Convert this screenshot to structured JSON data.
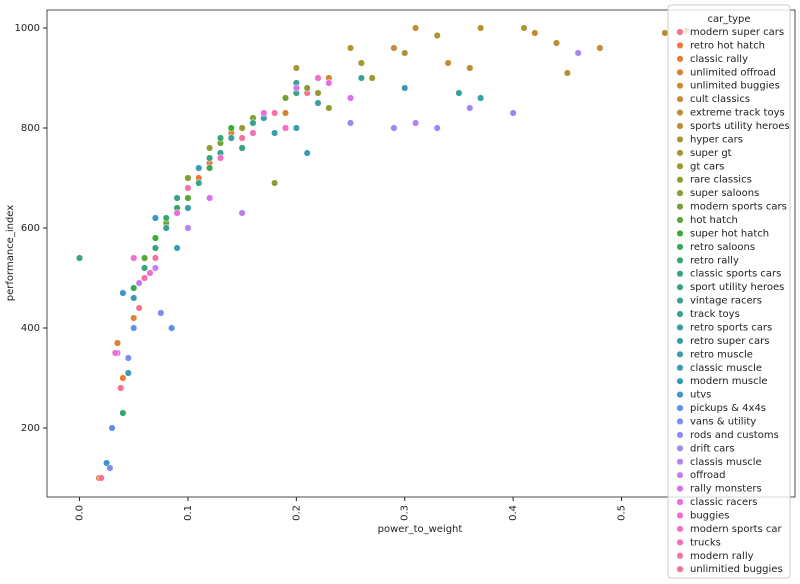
{
  "chart_data": {
    "type": "scatter",
    "xlabel": "power_to_weight",
    "ylabel": "performance_index",
    "xlim": [
      -0.03,
      0.66
    ],
    "ylim": [
      62,
      1036
    ],
    "xticks": [
      {
        "value": 0,
        "label": "0.0"
      },
      0.1,
      0.2,
      0.3,
      0.4,
      0.5
    ],
    "yticks": [
      200,
      400,
      600,
      800,
      1000
    ],
    "legend_title": "car_type",
    "legend": "upper right",
    "series": [
      {
        "name": "modern super cars",
        "color": "#f77189",
        "x": [
          0.17,
          0.21,
          0.23
        ],
        "values": [
          820,
          870,
          900
        ]
      },
      {
        "name": "retro hot hatch",
        "color": "#f5763f",
        "x": [
          0.06,
          0.09,
          0.12
        ],
        "values": [
          520,
          640,
          730
        ]
      },
      {
        "name": "classic rally",
        "color": "#ed7a32",
        "x": [
          0.04,
          0.07,
          0.11
        ],
        "values": [
          300,
          540,
          700
        ]
      },
      {
        "name": "unlimited offroad",
        "color": "#e08032",
        "x": [
          0.02,
          0.05,
          0.14
        ],
        "values": [
          100,
          420,
          790
        ]
      },
      {
        "name": "unlimited buggies",
        "color": "#d58532",
        "x": [
          0.018,
          0.035,
          0.19
        ],
        "values": [
          100,
          370,
          830
        ]
      },
      {
        "name": "cult classics",
        "color": "#cb8932",
        "x": [
          0.23,
          0.29,
          0.34
        ],
        "values": [
          900,
          960,
          930
        ]
      },
      {
        "name": "extreme track toys",
        "color": "#c18d32",
        "x": [
          0.31,
          0.37,
          0.42,
          0.48
        ],
        "values": [
          1000,
          1000,
          990,
          960
        ]
      },
      {
        "name": "sports utility heroes",
        "color": "#b89032",
        "x": [
          0.36,
          0.44,
          0.54,
          0.56
        ],
        "values": [
          920,
          970,
          990,
          995
        ]
      },
      {
        "name": "hyper cars",
        "color": "#ae9432",
        "x": [
          0.25,
          0.33,
          0.41,
          0.45
        ],
        "values": [
          960,
          985,
          1000,
          910
        ]
      },
      {
        "name": "super gt",
        "color": "#a59632",
        "x": [
          0.2,
          0.26,
          0.3
        ],
        "values": [
          920,
          930,
          950
        ]
      },
      {
        "name": "gt cars",
        "color": "#9b9932",
        "x": [
          0.15,
          0.22,
          0.27
        ],
        "values": [
          800,
          870,
          900
        ]
      },
      {
        "name": "rare classics",
        "color": "#8f9c32",
        "x": [
          0.12,
          0.18,
          0.23
        ],
        "values": [
          760,
          690,
          840
        ]
      },
      {
        "name": "super saloons",
        "color": "#829f32",
        "x": [
          0.1,
          0.16,
          0.21
        ],
        "values": [
          700,
          820,
          880
        ]
      },
      {
        "name": "modern sports cars",
        "color": "#72a232",
        "x": [
          0.08,
          0.13,
          0.19
        ],
        "values": [
          610,
          770,
          860
        ]
      },
      {
        "name": "hot hatch",
        "color": "#5ca632",
        "x": [
          0.06,
          0.08,
          0.1
        ],
        "values": [
          540,
          600,
          660
        ]
      },
      {
        "name": "super hot hatch",
        "color": "#3ba935",
        "x": [
          0.07,
          0.11,
          0.14
        ],
        "values": [
          580,
          720,
          800
        ]
      },
      {
        "name": "retro saloons",
        "color": "#33a95a",
        "x": [
          0.05,
          0.09,
          0.12
        ],
        "values": [
          480,
          640,
          720
        ]
      },
      {
        "name": "retro rally",
        "color": "#34a76d",
        "x": [
          0.04,
          0.08,
          0.13
        ],
        "values": [
          230,
          620,
          780
        ]
      },
      {
        "name": "classic sports cars",
        "color": "#35a67a",
        "x": [
          0.07,
          0.1,
          0.15
        ],
        "values": [
          560,
          680,
          760
        ]
      },
      {
        "name": "sport utility heroes",
        "color": "#36a484",
        "x": [
          0.09,
          0.12,
          0.2
        ],
        "values": [
          660,
          740,
          870
        ]
      },
      {
        "name": "vintage racers",
        "color": "#36a38c",
        "x": [
          0,
          0.06,
          0.11,
          0.16
        ],
        "values": [
          540,
          520,
          690,
          810
        ]
      },
      {
        "name": "track toys",
        "color": "#37a294",
        "x": [
          0.14,
          0.2,
          0.26
        ],
        "values": [
          780,
          890,
          900
        ]
      },
      {
        "name": "retro sports cars",
        "color": "#38a09b",
        "x": [
          0.08,
          0.13,
          0.35
        ],
        "values": [
          600,
          750,
          870
        ]
      },
      {
        "name": "retro super cars",
        "color": "#389fa2",
        "x": [
          0.17,
          0.22,
          0.37
        ],
        "values": [
          820,
          850,
          860
        ]
      },
      {
        "name": "retro muscle",
        "color": "#399daa",
        "x": [
          0.05,
          0.1,
          0.18
        ],
        "values": [
          460,
          640,
          790
        ]
      },
      {
        "name": "classic muscle",
        "color": "#3a9bb2",
        "x": [
          0.045,
          0.09,
          0.2
        ],
        "values": [
          310,
          560,
          800
        ]
      },
      {
        "name": "modern muscle",
        "color": "#3b98bd",
        "x": [
          0.11,
          0.21,
          0.3
        ],
        "values": [
          720,
          750,
          880
        ]
      },
      {
        "name": "utvs",
        "color": "#3d95ca",
        "x": [
          0.025,
          0.04,
          0.07
        ],
        "values": [
          130,
          470,
          620
        ]
      },
      {
        "name": "pickups & 4x4s",
        "color": "#5c8ff0",
        "x": [
          0.03,
          0.05,
          0.085
        ],
        "values": [
          200,
          400,
          400
        ]
      },
      {
        "name": "vans & utility",
        "color": "#7a8ef2",
        "x": [
          0.028,
          0.045,
          0.075
        ],
        "values": [
          120,
          340,
          430
        ]
      },
      {
        "name": "rods and customs",
        "color": "#918bf3",
        "x": [
          0.25,
          0.33,
          0.4
        ],
        "values": [
          810,
          800,
          830
        ]
      },
      {
        "name": "drift cars",
        "color": "#a486f4",
        "x": [
          0.29,
          0.36,
          0.46
        ],
        "values": [
          800,
          840,
          950
        ]
      },
      {
        "name": "classis muscle",
        "color": "#b681f4",
        "x": [
          0.1,
          0.15,
          0.31
        ],
        "values": [
          600,
          630,
          810
        ]
      },
      {
        "name": "offroad",
        "color": "#c77bf4",
        "x": [
          0.035,
          0.055,
          0.07
        ],
        "values": [
          350,
          490,
          520
        ]
      },
      {
        "name": "rally monsters",
        "color": "#d773f0",
        "x": [
          0.12,
          0.2,
          0.25
        ],
        "values": [
          660,
          880,
          860
        ]
      },
      {
        "name": "classic racers",
        "color": "#e56de3",
        "x": [
          0.09,
          0.17,
          0.23
        ],
        "values": [
          630,
          830,
          890
        ]
      },
      {
        "name": "buggies",
        "color": "#f06cd2",
        "x": [
          0.033,
          0.05,
          0.065
        ],
        "values": [
          350,
          540,
          510
        ]
      },
      {
        "name": "modern sports car",
        "color": "#f46ec1",
        "x": [
          0.13,
          0.19,
          0.22
        ],
        "values": [
          740,
          800,
          900
        ]
      },
      {
        "name": "trucks",
        "color": "#f56fb1",
        "x": [
          0.06,
          0.1,
          0.16
        ],
        "values": [
          500,
          680,
          790
        ]
      },
      {
        "name": "modern rally",
        "color": "#f670a1",
        "x": [
          0.07,
          0.15,
          0.18
        ],
        "values": [
          540,
          780,
          830
        ]
      },
      {
        "name": "unlimitied buggies",
        "color": "#f77092",
        "x": [
          0.02,
          0.038,
          0.055
        ],
        "values": [
          100,
          280,
          440
        ]
      }
    ]
  }
}
